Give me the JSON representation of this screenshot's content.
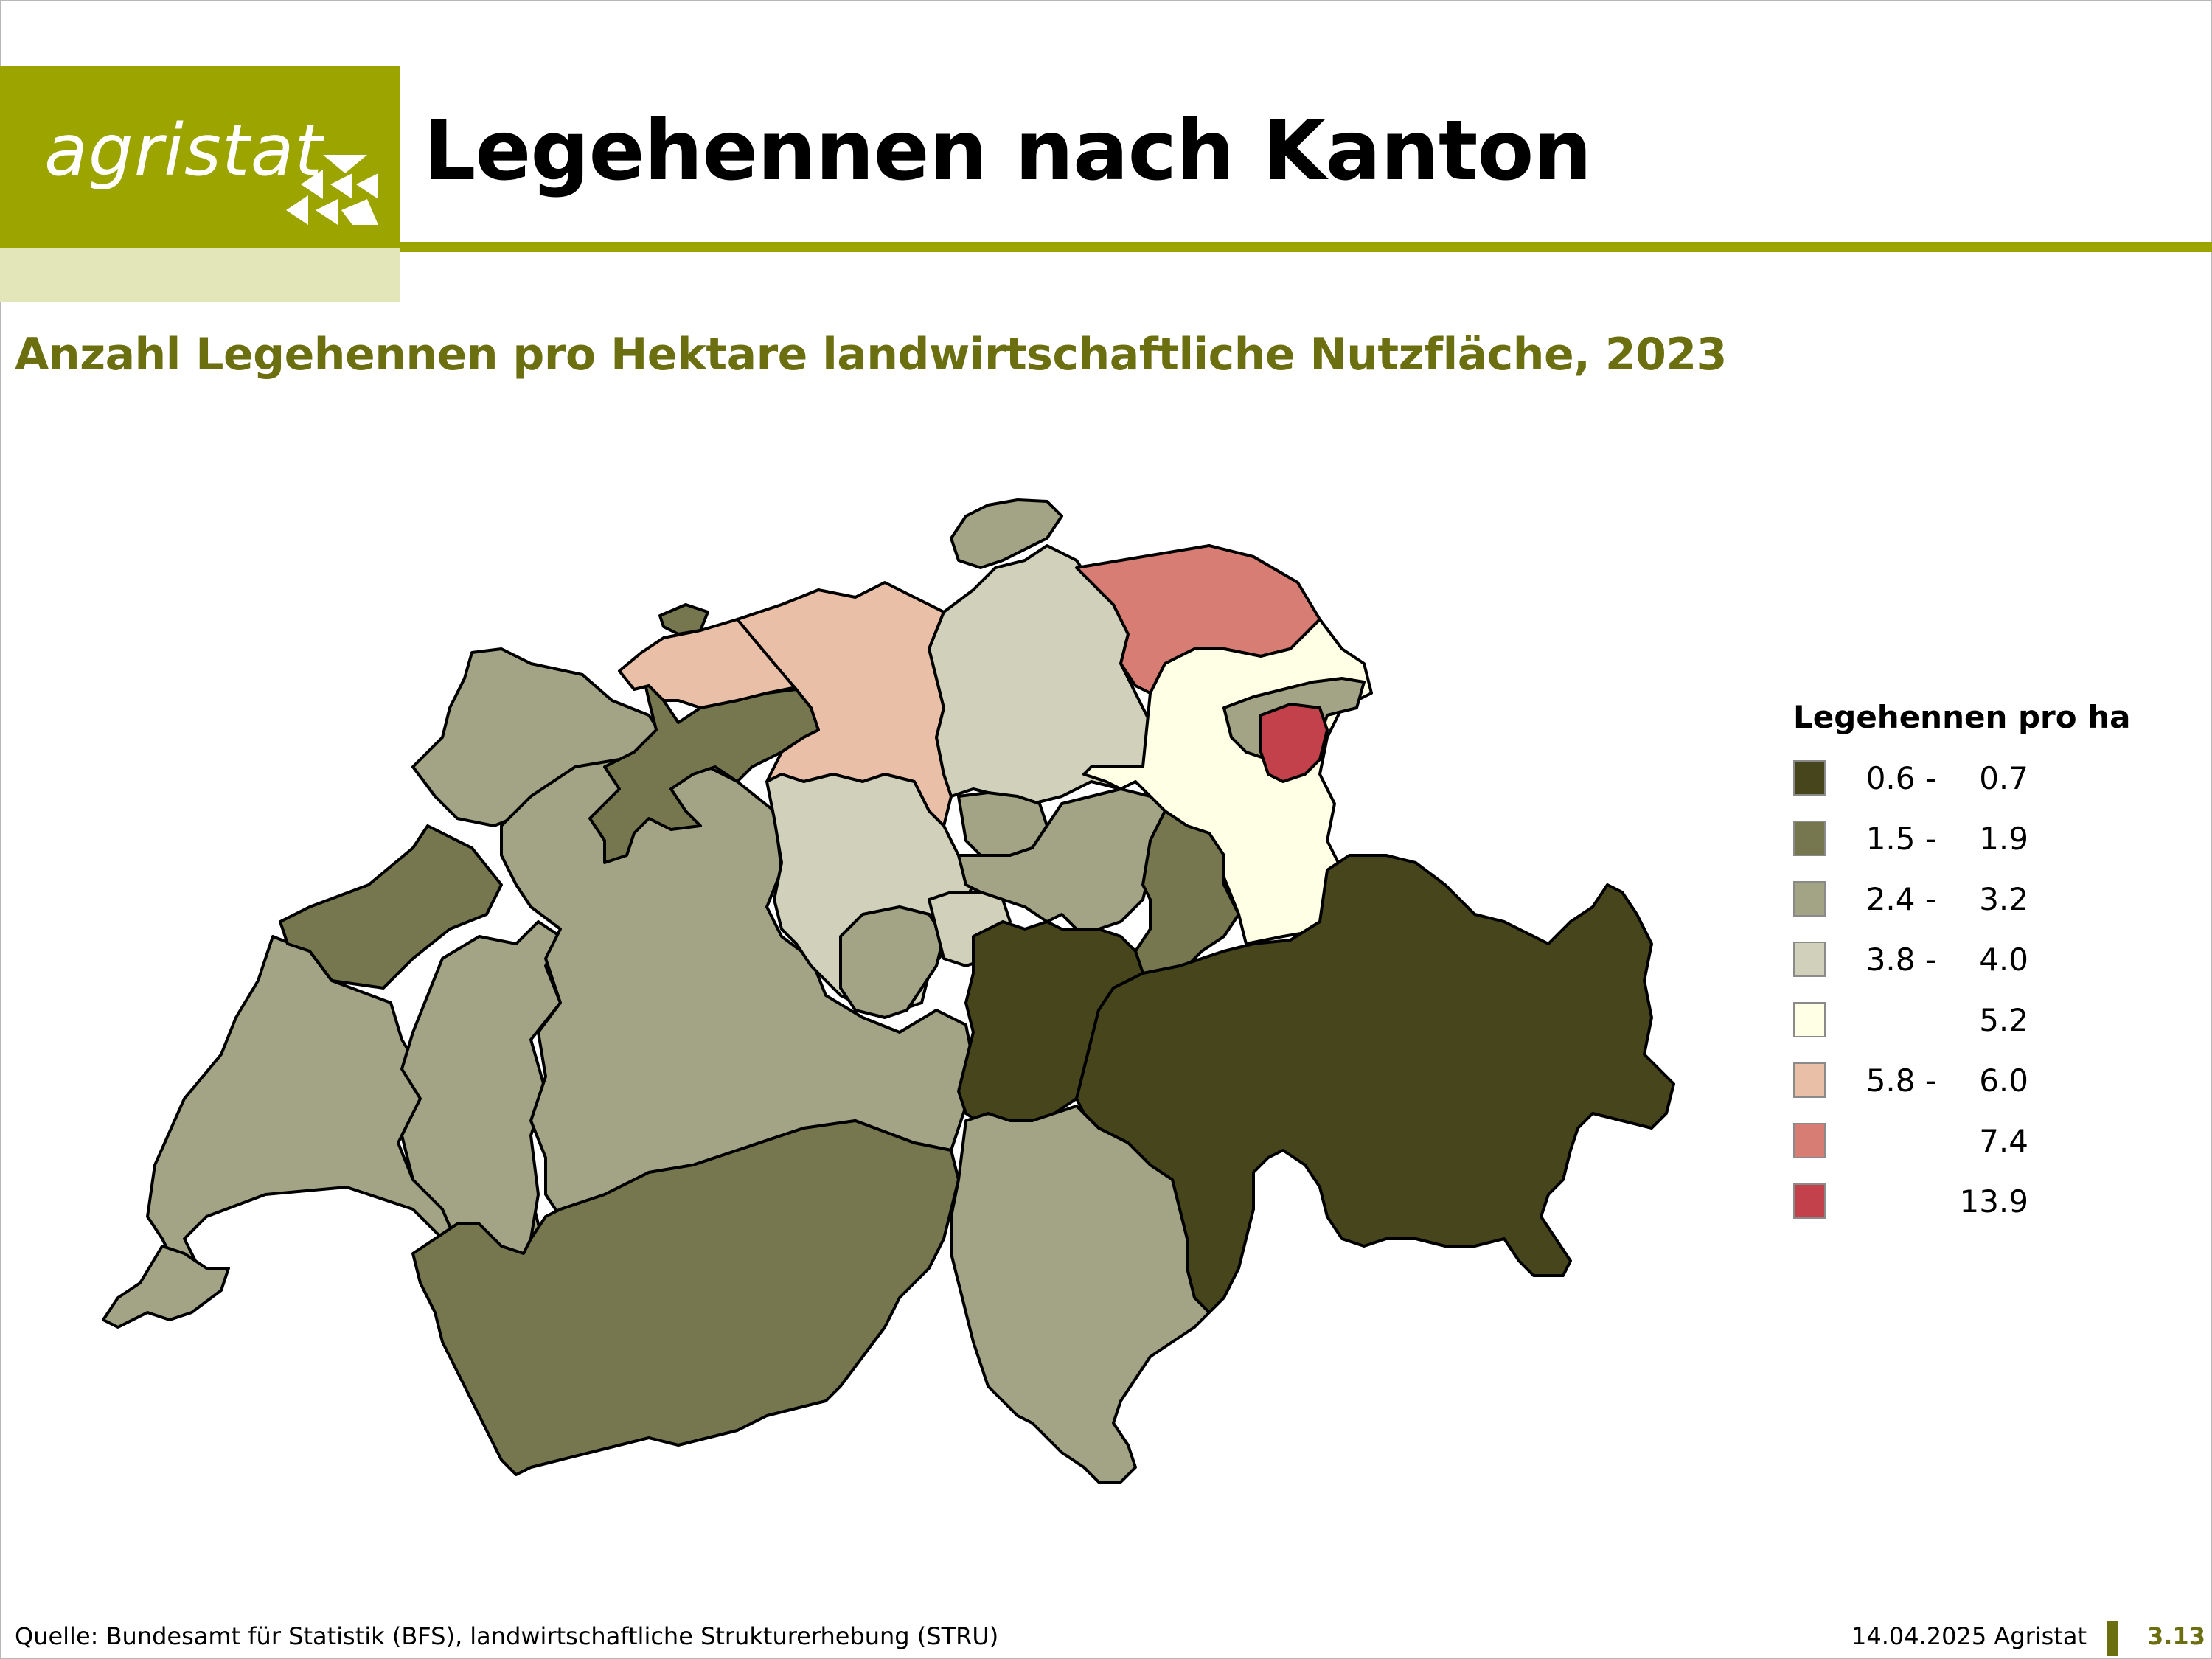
{
  "header": {
    "logo_text": "agristat",
    "title": "Legehennen nach Kanton"
  },
  "subtitle": "Anzahl Legehennen pro Hektare landwirtschaftliche Nutzfläche, 2023",
  "colors": {
    "brand": "#9ca500",
    "brand_light": "#e3e6b8",
    "subtitle": "#6b6f10",
    "class_1": "#47451c",
    "class_2": "#76764f",
    "class_3": "#a3a385",
    "class_4": "#d1d1bb",
    "class_5": "#ffffe5",
    "class_6": "#eabfa8",
    "class_7": "#d77d74",
    "class_8": "#c2414b"
  },
  "legend": {
    "title": "Legehennen pro ha",
    "classes": [
      {
        "from": "0.6 -",
        "to": "0.7",
        "color": "#47451c"
      },
      {
        "from": "1.5 -",
        "to": "1.9",
        "color": "#76764f"
      },
      {
        "from": "2.4 -",
        "to": "3.2",
        "color": "#a3a385"
      },
      {
        "from": "3.8 -",
        "to": "4.0",
        "color": "#d1d1bb"
      },
      {
        "from": "",
        "to": "5.2",
        "color": "#ffffe5"
      },
      {
        "from": "5.8 -",
        "to": "6.0",
        "color": "#eabfa8"
      },
      {
        "from": "",
        "to": "7.4",
        "color": "#d77d74"
      },
      {
        "from": "",
        "to": "13.9",
        "color": "#c2414b"
      }
    ]
  },
  "footer": {
    "source": "Quelle: Bundesamt für Statistik (BFS), landwirtschaftliche Strukturerhebung (STRU)",
    "date": "14.04.2025 Agristat",
    "page": "3.13"
  }
}
